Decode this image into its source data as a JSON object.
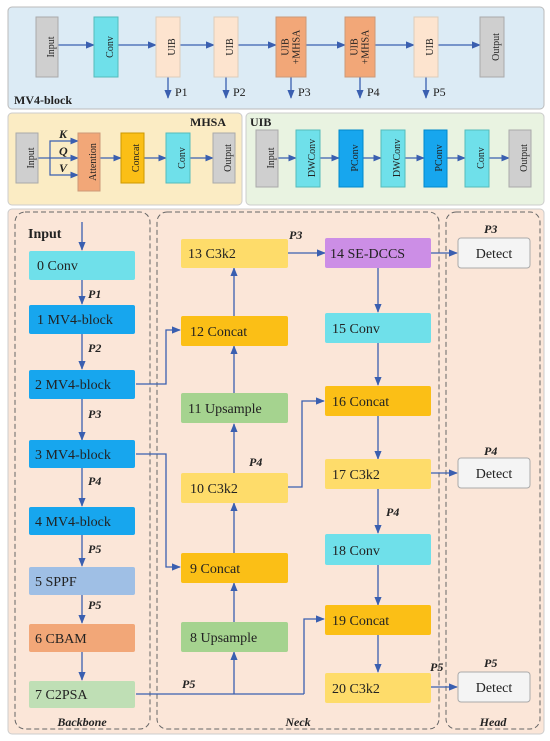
{
  "mv4": {
    "title": "MV4-block",
    "blocks": [
      "Input",
      "Conv",
      "UIB",
      "UIB",
      "UIB\n+MHSA",
      "UIB\n+MHSA",
      "UIB",
      "Output"
    ],
    "outputs": [
      "P1",
      "P2",
      "P3",
      "P4",
      "P5"
    ]
  },
  "mhsa": {
    "title": "MHSA",
    "blocks": [
      "Input",
      "Attention",
      "Concat",
      "Conv",
      "Output"
    ],
    "qkv": [
      "K",
      "Q",
      "V"
    ]
  },
  "uib": {
    "title": "UIB",
    "blocks": [
      "Input",
      "DWConv",
      "PConv",
      "DWConv",
      "PConv",
      "Conv",
      "Output"
    ]
  },
  "network": {
    "input_label": "Input",
    "sections": [
      "Backbone",
      "Neck",
      "Head"
    ],
    "nodes": {
      "n0": "0 Conv",
      "n1": "1 MV4-block",
      "n2": "2 MV4-block",
      "n3": "3 MV4-block",
      "n4": "4 MV4-block",
      "n5": "5 SPPF",
      "n6": "6 CBAM",
      "n7": "7 C2PSA",
      "n8": "8 Upsample",
      "n9": "9 Concat",
      "n10": "10 C3k2",
      "n11": "11 Upsample",
      "n12": "12 Concat",
      "n13": "13 C3k2",
      "n14": "14 SE-DCCS",
      "n15": "15 Conv",
      "n16": "16 Concat",
      "n17": "17 C3k2",
      "n18": "18 Conv",
      "n19": "19 Concat",
      "n20": "20 C3k2",
      "d1": "Detect",
      "d2": "Detect",
      "d3": "Detect"
    },
    "edge_labels": {
      "b1": "P1",
      "b2": "P2",
      "b3": "P3",
      "b4": "P4",
      "b5": "P5",
      "b6": "P5",
      "n_p3": "P3",
      "n_p4a": "P4",
      "n_p4b": "P4",
      "n_p5": "P5",
      "n_p5b": "P5",
      "h_p3": "P3",
      "h_p4": "P4",
      "h_p5": "P5"
    }
  }
}
